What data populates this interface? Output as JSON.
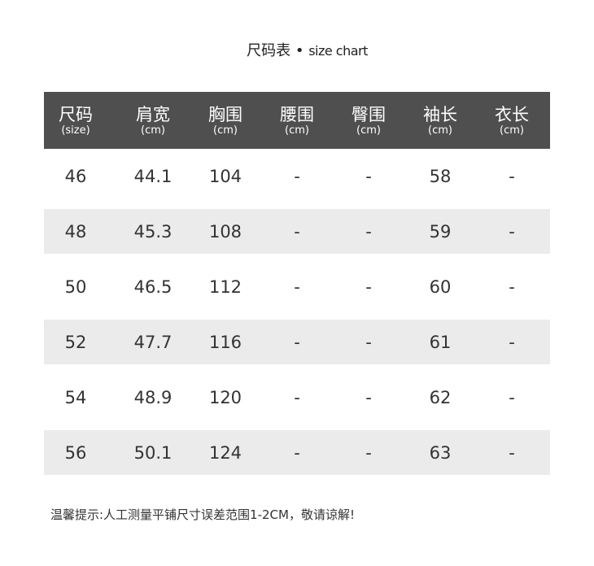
{
  "title": {
    "zh": "尺码表",
    "sep": "•",
    "en": "size chart"
  },
  "columns": [
    {
      "zh": "尺码",
      "unit": "(size)"
    },
    {
      "zh": "肩宽",
      "unit": "(cm)"
    },
    {
      "zh": "胸围",
      "unit": "(cm)"
    },
    {
      "zh": "腰围",
      "unit": "(cm)"
    },
    {
      "zh": "臀围",
      "unit": "(cm)"
    },
    {
      "zh": "袖长",
      "unit": "(cm)"
    },
    {
      "zh": "衣长",
      "unit": "(cm)"
    }
  ],
  "rows": [
    [
      "46",
      "44.1",
      "104",
      "-",
      "-",
      "58",
      "-"
    ],
    [
      "48",
      "45.3",
      "108",
      "-",
      "-",
      "59",
      "-"
    ],
    [
      "50",
      "46.5",
      "112",
      "-",
      "-",
      "60",
      "-"
    ],
    [
      "52",
      "47.7",
      "116",
      "-",
      "-",
      "61",
      "-"
    ],
    [
      "54",
      "48.9",
      "120",
      "-",
      "-",
      "62",
      "-"
    ],
    [
      "56",
      "50.1",
      "124",
      "-",
      "-",
      "63",
      "-"
    ]
  ],
  "note": "温馨提示:人工测量平铺尺寸误差范围1-2CM，敬请谅解!",
  "colors": {
    "header_bg": "#4f4f4f",
    "band_bg": "#ebebeb",
    "text": "#333333"
  }
}
